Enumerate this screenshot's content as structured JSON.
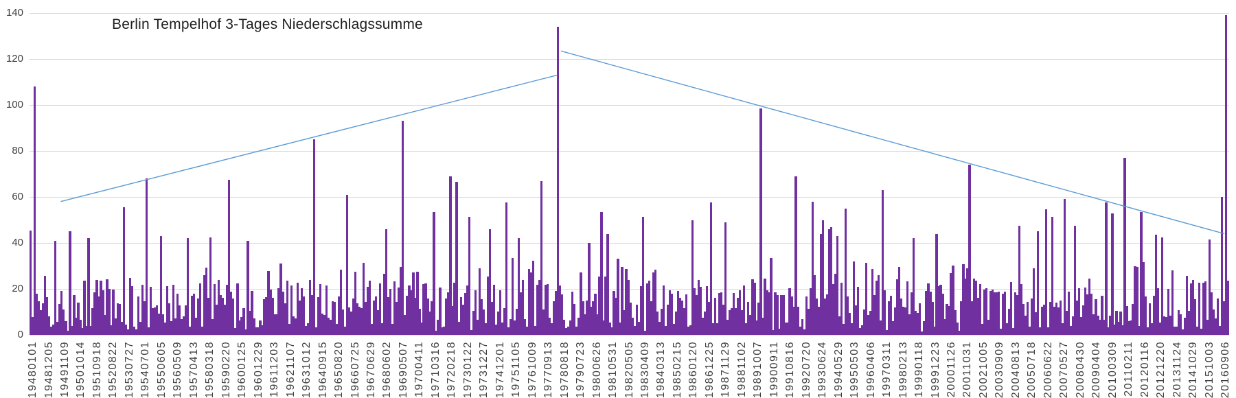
{
  "page": {
    "background": "#FFFFFF"
  },
  "chart_data": {
    "type": "bar",
    "title": "Berlin Tempelhof 3-Tages Niederschlagssumme",
    "xlabel": "",
    "ylabel": "",
    "ylim": [
      0,
      140
    ],
    "y_ticks": [
      0,
      20,
      40,
      60,
      80,
      100,
      120,
      140
    ],
    "grid": "horizontal",
    "legend": "none",
    "x_tick_label_rotation_deg": -90,
    "x_tick_labels": [
      "19480101",
      "19481205",
      "19491109",
      "19501014",
      "19510918",
      "19520822",
      "19530727",
      "19540701",
      "19550605",
      "19560509",
      "19570413",
      "19580318",
      "19590220",
      "19600125",
      "19601229",
      "19611203",
      "19621107",
      "19631012",
      "19640915",
      "19650820",
      "19660725",
      "19670629",
      "19680602",
      "19690507",
      "19700411",
      "19710316",
      "19720218",
      "19730122",
      "19731227",
      "19741201",
      "19751105",
      "19761009",
      "19770913",
      "19780818",
      "19790723",
      "19800626",
      "19810531",
      "19820505",
      "19830409",
      "19840313",
      "19850215",
      "19860120",
      "19861225",
      "19871129",
      "19881102",
      "19891007",
      "19900911",
      "19910816",
      "19920720",
      "19930624",
      "19940529",
      "19950503",
      "19960406",
      "19970311",
      "19980213",
      "19990118",
      "19991223",
      "20001126",
      "20011031",
      "20021005",
      "20030909",
      "20040813",
      "20050718",
      "20060622",
      "20070527",
      "20080430",
      "20090404",
      "20100309",
      "20110211",
      "20120116",
      "20121220",
      "20131124",
      "20141029",
      "20151003",
      "20160906"
    ],
    "bar_color": "#7030A0",
    "trendline_color": "#5B9BD5",
    "gridline_color": "#D9D9D9",
    "axis_text_color": "#3F3F3F",
    "title_color": "#1F1F1F",
    "bar_count": 580,
    "noise": {
      "seed": 19480101,
      "base_min": 3,
      "base_span": 21,
      "mid_chance": 0.3,
      "mid_span": 12,
      "high_chance": 0.07,
      "high_span": 9,
      "low_chance": 0.12,
      "low_min": 1.5,
      "low_span": 5
    },
    "peaks": [
      [
        0.0,
        45.5
      ],
      [
        0.004,
        108
      ],
      [
        0.021,
        41
      ],
      [
        0.033,
        45
      ],
      [
        0.049,
        42
      ],
      [
        0.078,
        55.5
      ],
      [
        0.096,
        68
      ],
      [
        0.109,
        43
      ],
      [
        0.132,
        42
      ],
      [
        0.15,
        42.5
      ],
      [
        0.166,
        67.5
      ],
      [
        0.181,
        41
      ],
      [
        0.237,
        85
      ],
      [
        0.265,
        61
      ],
      [
        0.297,
        46
      ],
      [
        0.311,
        93
      ],
      [
        0.337,
        53.5
      ],
      [
        0.35,
        69
      ],
      [
        0.355,
        66.5
      ],
      [
        0.367,
        51.5
      ],
      [
        0.383,
        46
      ],
      [
        0.397,
        57.5
      ],
      [
        0.408,
        42
      ],
      [
        0.426,
        67
      ],
      [
        0.44,
        134
      ],
      [
        0.466,
        40
      ],
      [
        0.477,
        53.5
      ],
      [
        0.482,
        44
      ],
      [
        0.511,
        51.5
      ],
      [
        0.552,
        50
      ],
      [
        0.568,
        57.5
      ],
      [
        0.581,
        49
      ],
      [
        0.61,
        98.5
      ],
      [
        0.639,
        69
      ],
      [
        0.652,
        58
      ],
      [
        0.659,
        44
      ],
      [
        0.662,
        50
      ],
      [
        0.666,
        46
      ],
      [
        0.669,
        47
      ],
      [
        0.673,
        43
      ],
      [
        0.681,
        55
      ],
      [
        0.712,
        63
      ],
      [
        0.737,
        42
      ],
      [
        0.756,
        44
      ],
      [
        0.784,
        74
      ],
      [
        0.826,
        47.5
      ],
      [
        0.841,
        45
      ],
      [
        0.848,
        54.5
      ],
      [
        0.854,
        51.5
      ],
      [
        0.863,
        59
      ],
      [
        0.872,
        47.5
      ],
      [
        0.898,
        57.5
      ],
      [
        0.903,
        53
      ],
      [
        0.913,
        77
      ],
      [
        0.927,
        53.5
      ],
      [
        0.94,
        43.5
      ],
      [
        0.944,
        42.5
      ],
      [
        0.984,
        41.5
      ],
      [
        0.994,
        60
      ],
      [
        0.998,
        139
      ]
    ],
    "trendlines": [
      {
        "x1": 0.026,
        "v1": 58,
        "x2": 0.44,
        "v2": 113
      },
      {
        "x1": 0.443,
        "v1": 123.5,
        "x2": 0.996,
        "v2": 44
      }
    ]
  }
}
